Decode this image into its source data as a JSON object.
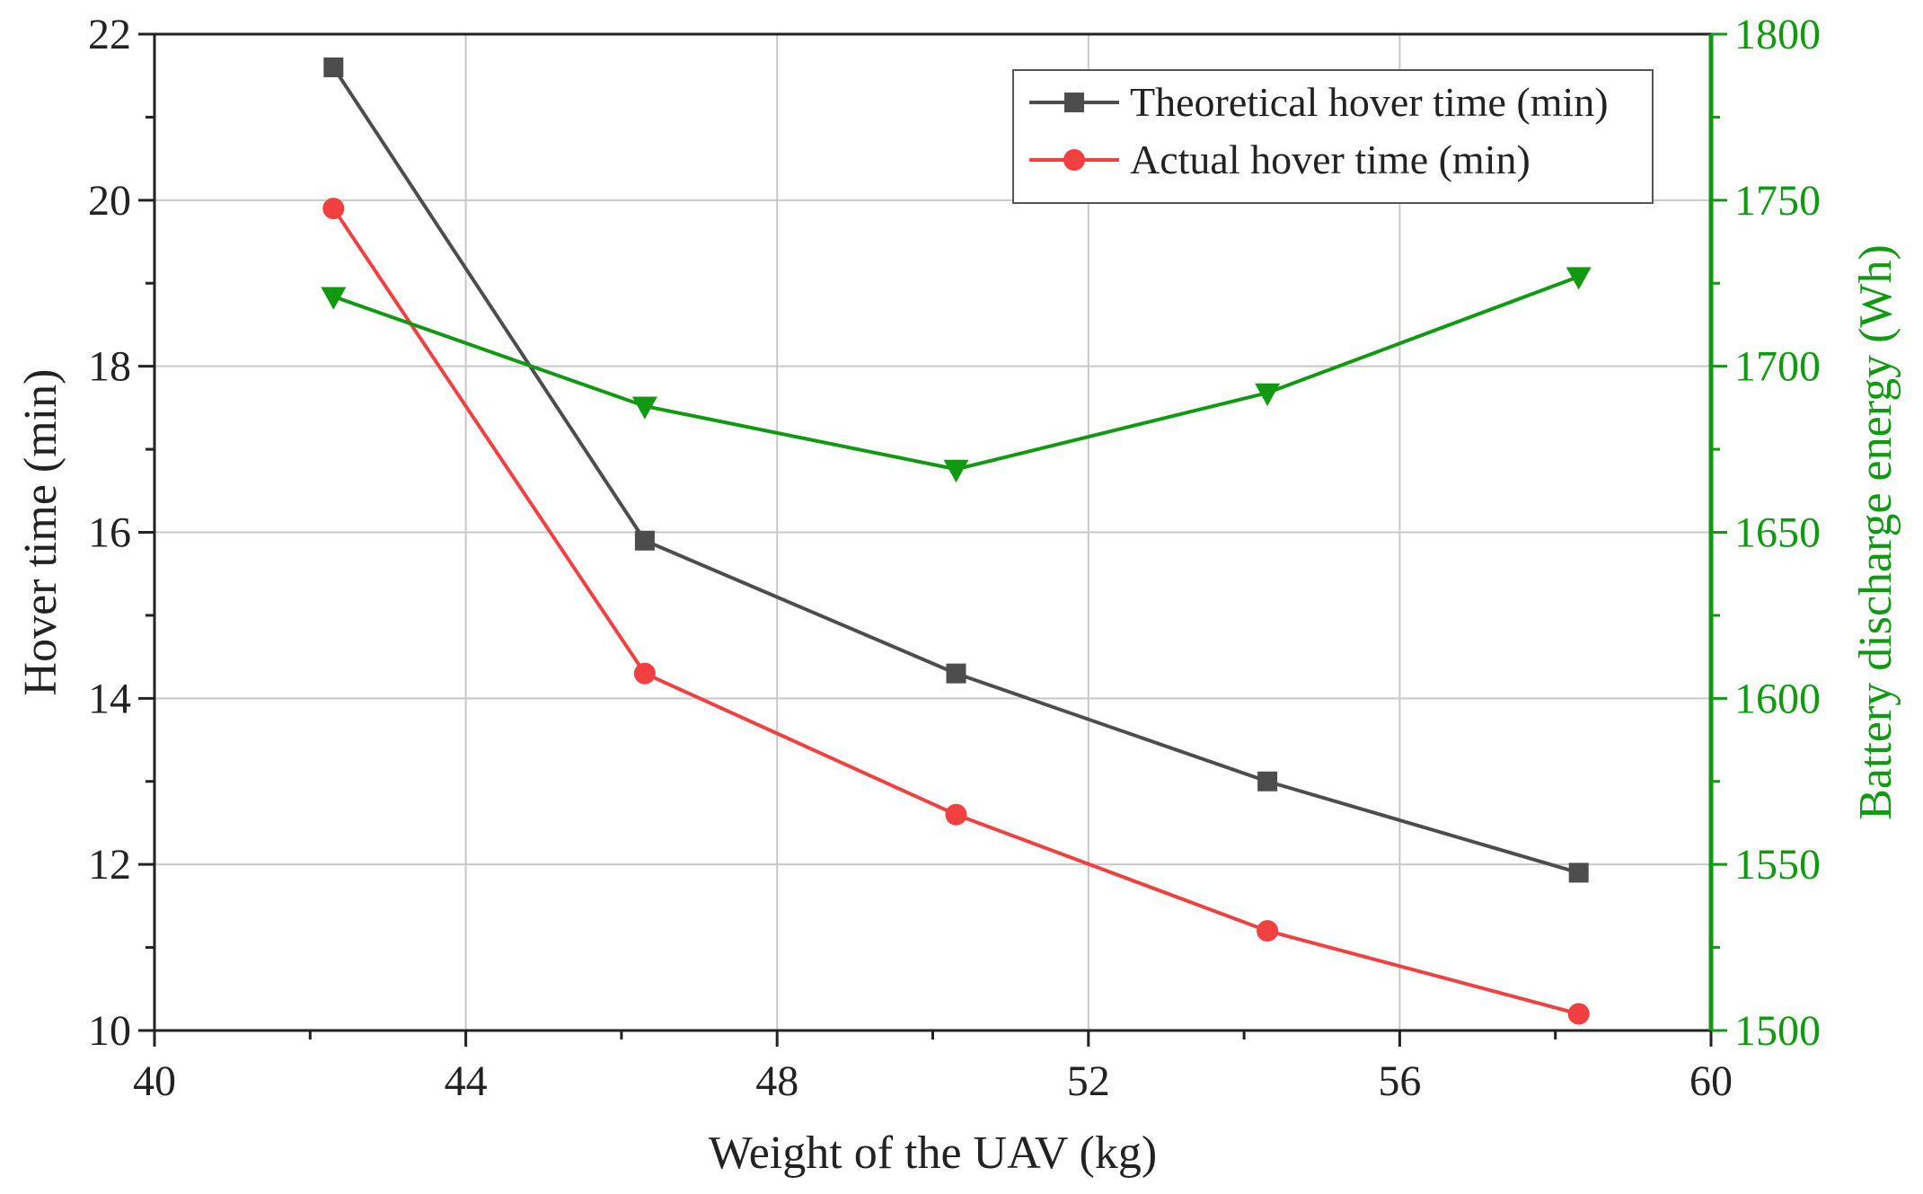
{
  "chart_data": {
    "type": "line",
    "title": "",
    "xlabel": "Weight of the UAV (kg)",
    "ylabel_left": "Hover time (min)",
    "ylabel_right": "Battery discharge energy (Wh)",
    "xlim": [
      40,
      60
    ],
    "ylim_left": [
      10,
      22
    ],
    "ylim_right": [
      1500,
      1800
    ],
    "x_ticks": [
      40,
      44,
      48,
      52,
      56,
      60
    ],
    "y_ticks_left": [
      10,
      12,
      14,
      16,
      18,
      20,
      22
    ],
    "y_ticks_right": [
      1500,
      1550,
      1600,
      1650,
      1700,
      1750,
      1800
    ],
    "grid": true,
    "legend_position": "top-right",
    "x": [
      42.3,
      46.3,
      50.3,
      54.3,
      58.3
    ],
    "series": [
      {
        "name": "Theoretical hover time (min)",
        "axis": "left",
        "color": "#4d4d4d",
        "marker": "square",
        "values": [
          21.6,
          15.9,
          14.3,
          13.0,
          11.9
        ]
      },
      {
        "name": "Actual hover time (min)",
        "axis": "left",
        "color": "#f04040",
        "marker": "circle",
        "values": [
          19.9,
          14.3,
          12.6,
          11.2,
          10.2
        ]
      },
      {
        "axis": "right",
        "color": "#119911",
        "marker": "triangle-down",
        "values": [
          1721,
          1688,
          1669,
          1692,
          1727
        ]
      }
    ]
  }
}
